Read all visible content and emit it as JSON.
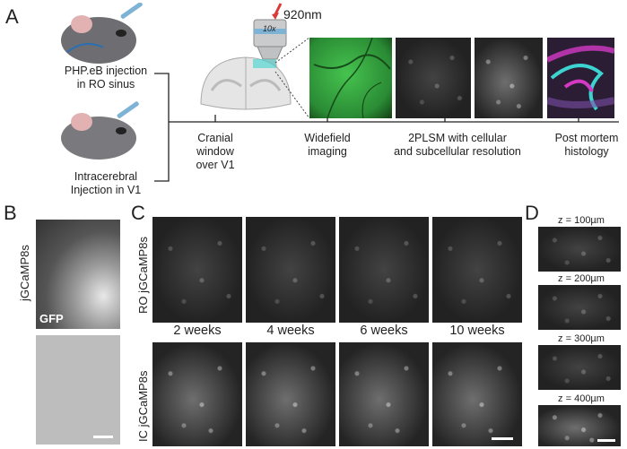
{
  "panels": {
    "a": "A",
    "b": "B",
    "c": "C",
    "d": "D"
  },
  "panel_a": {
    "injection1": [
      "PHP.eB injection",
      "in RO sinus"
    ],
    "injection2": [
      "Intracerebral",
      "Injection in V1"
    ],
    "laser": "920nm",
    "objective": "10x",
    "steps": [
      [
        "Cranial window",
        "over V1"
      ],
      [
        "Widefield",
        "imaging"
      ],
      [
        "2PLSM with cellular",
        "and subcellular resolution"
      ],
      [
        "Post mortem",
        "histology"
      ]
    ]
  },
  "panel_b": {
    "ylabel": "jGCaMP8s",
    "inset": "GFP"
  },
  "panel_c": {
    "row1": "RO jGCaMP8s",
    "row2": "IC jGCaMP8s",
    "weeks": [
      "2 weeks",
      "4 weeks",
      "6 weeks",
      "10 weeks"
    ]
  },
  "panel_d": {
    "depths": [
      "z = 100µm",
      "z = 200µm",
      "z = 300µm",
      "z = 400µm"
    ]
  },
  "colors": {
    "syringe": "#7fb3d5",
    "laser": "#d93a3a",
    "widefield": "#3fa34d",
    "histology_cyan": "#3cd3d0",
    "histology_magenta": "#d23ac4"
  }
}
